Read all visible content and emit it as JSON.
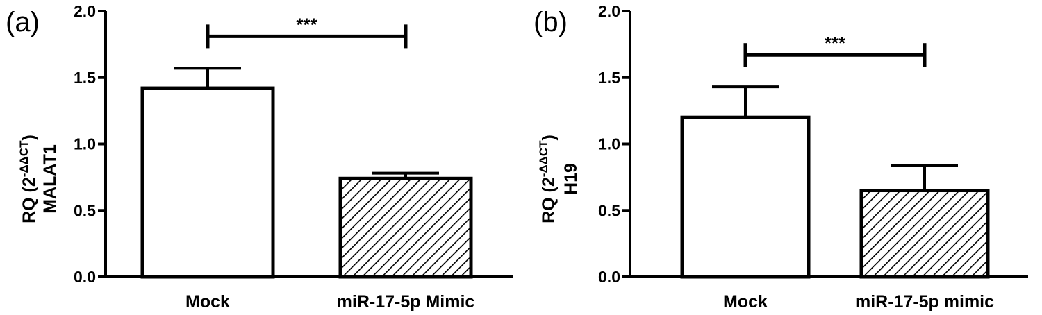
{
  "chart_data": [
    {
      "type": "bar",
      "panel_label": "(a)",
      "categories": [
        "Mock",
        "miR-17-5p Mimic"
      ],
      "values": [
        1.42,
        0.74
      ],
      "error_upper": [
        1.57,
        0.78
      ],
      "fills": [
        "white",
        "hatched"
      ],
      "ylabel_main": "RQ (2",
      "ylabel_sup": "-ΔΔCT",
      "ylabel_close": ")",
      "ylabel_gene": "MALAT1",
      "ylim": [
        0,
        2.0
      ],
      "yticks": [
        "0.0",
        "0.5",
        "1.0",
        "1.5",
        "2.0"
      ],
      "significance": {
        "label": "***",
        "bar_value": 1.81
      }
    },
    {
      "type": "bar",
      "panel_label": "(b)",
      "categories": [
        "Mock",
        "miR-17-5p mimic"
      ],
      "values": [
        1.2,
        0.65
      ],
      "error_upper": [
        1.43,
        0.84
      ],
      "fills": [
        "white",
        "hatched"
      ],
      "ylabel_main": "RQ (2",
      "ylabel_sup": "-ΔΔCT",
      "ylabel_close": ")",
      "ylabel_gene": "H19",
      "ylim": [
        0,
        2.0
      ],
      "yticks": [
        "0.0",
        "0.5",
        "1.0",
        "1.5",
        "2.0"
      ],
      "significance": {
        "label": "***",
        "bar_value": 1.67
      }
    }
  ]
}
